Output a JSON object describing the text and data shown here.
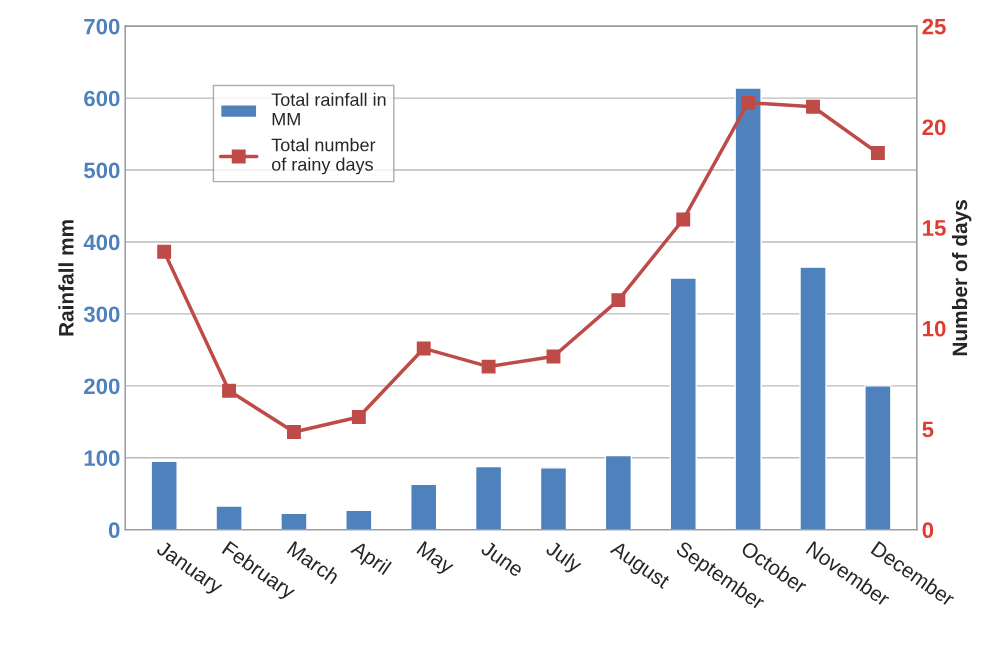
{
  "chart_data": {
    "type": "bar",
    "ylabel": "Rainfall mm",
    "y2label": "Number of days",
    "categories": [
      "January",
      "February",
      "March",
      "April",
      "May",
      "June",
      "July",
      "August",
      "September",
      "October",
      "November",
      "December"
    ],
    "series": [
      {
        "name": "Total rainfall in\nMM",
        "color": "#4f81bd",
        "values": [
          95,
          33,
          23,
          27,
          63,
          88,
          86,
          103,
          350,
          614,
          365,
          200
        ]
      },
      {
        "name": "Total number\nof rainy days",
        "type": "line",
        "axis": "y2",
        "color": "#be4b48",
        "marker": "square",
        "values": [
          13.8,
          6.9,
          4.85,
          5.6,
          9.0,
          8.1,
          8.6,
          11.4,
          15.4,
          21.2,
          21.0,
          18.7
        ]
      }
    ],
    "ylim": [
      0,
      700
    ],
    "yticks": [
      0,
      100,
      200,
      300,
      400,
      500,
      600,
      700
    ],
    "y2lim": [
      0,
      25
    ],
    "y2ticks": [
      0,
      5,
      10,
      15,
      20,
      25
    ],
    "grid": "y",
    "legend": "top left"
  }
}
